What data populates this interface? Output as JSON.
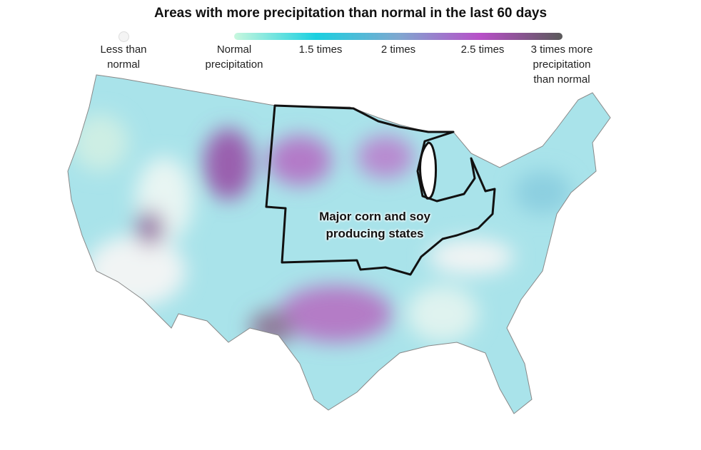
{
  "title": "Areas with more precipitation than normal in the last 60 days",
  "legend": {
    "less": "Less than normal",
    "stops": [
      "Normal precipitation",
      "1.5 times",
      "2 times",
      "2.5 times",
      "3 times more precipitation than normal"
    ]
  },
  "annotation": "Major corn and soy producing states"
}
